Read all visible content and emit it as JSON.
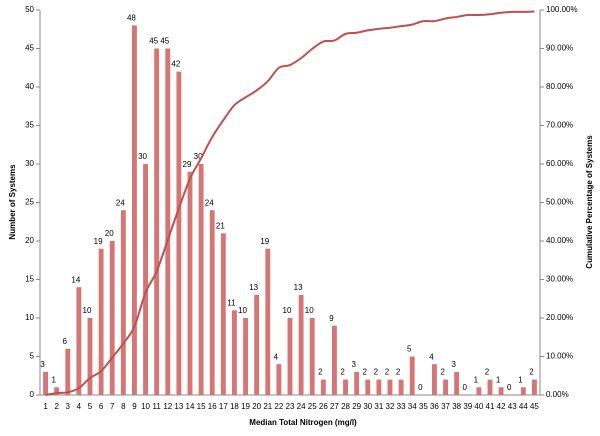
{
  "chart_data": {
    "type": "bar",
    "x_label": "Median Total Nitrogen (mg/l)",
    "y_label": "Number of Systems",
    "y2_label": "Cumulative Percentage of Systems",
    "categories": [
      "1",
      "2",
      "3",
      "4",
      "5",
      "6",
      "7",
      "8",
      "9",
      "10",
      "11",
      "12",
      "13",
      "14",
      "15",
      "16",
      "17",
      "18",
      "19",
      "20",
      "21",
      "22",
      "23",
      "24",
      "25",
      "26",
      "27",
      "28",
      "29",
      "30",
      "31",
      "32",
      "33",
      "34",
      "35",
      "36",
      "37",
      "38",
      "39",
      "40",
      "41",
      "42",
      "43",
      "44",
      "45"
    ],
    "series": [
      {
        "color": "#d47676",
        "values": [
          3,
          1,
          6,
          14,
          10,
          19,
          20,
          24,
          48,
          30,
          45,
          45,
          42,
          29,
          30,
          24,
          21,
          11,
          10,
          13,
          19,
          4,
          10,
          13,
          10,
          2,
          9,
          2,
          3,
          2,
          2,
          2,
          2,
          5,
          0,
          4,
          2,
          3,
          0,
          1,
          2,
          1,
          0,
          1,
          2
        ]
      },
      {
        "type": "line",
        "axis": "y2",
        "color": "#c0504d",
        "values": [
          0,
          0.5,
          0.7,
          1.8,
          4.4,
          6.2,
          9.7,
          13.4,
          17.8,
          26.6,
          32.1,
          40.3,
          48.5,
          56.2,
          61.5,
          67.0,
          71.4,
          75.3,
          77.3,
          79.1,
          81.5,
          85.0,
          85.7,
          87.5,
          89.9,
          91.8,
          92.1,
          93.8,
          94.1,
          94.7,
          95.1,
          95.4,
          95.8,
          96.2,
          97.1,
          97.1,
          97.8,
          98.2,
          98.7,
          98.7,
          98.9,
          99.3,
          99.5,
          99.5,
          99.6
        ]
      }
    ],
    "ylim": [
      0,
      50
    ],
    "yticks": [
      0,
      5,
      10,
      15,
      20,
      25,
      30,
      35,
      40,
      45,
      50
    ],
    "y2lim": [
      0,
      100
    ],
    "y2ticks": [
      {
        "value": 0,
        "label": "0.00%"
      },
      {
        "value": 10,
        "label": "10.00%"
      },
      {
        "value": 20,
        "label": "20.00%"
      },
      {
        "value": 30,
        "label": "30.00%"
      },
      {
        "value": 40,
        "label": "40.00%"
      },
      {
        "value": 50,
        "label": "50.00%"
      },
      {
        "value": 60,
        "label": "60.00%"
      },
      {
        "value": 70,
        "label": "70.00%"
      },
      {
        "value": 80,
        "label": "80.00%"
      },
      {
        "value": 90,
        "label": "90.00%"
      },
      {
        "value": 100,
        "label": "100.00%"
      }
    ],
    "data_labels": true,
    "grid": false
  }
}
